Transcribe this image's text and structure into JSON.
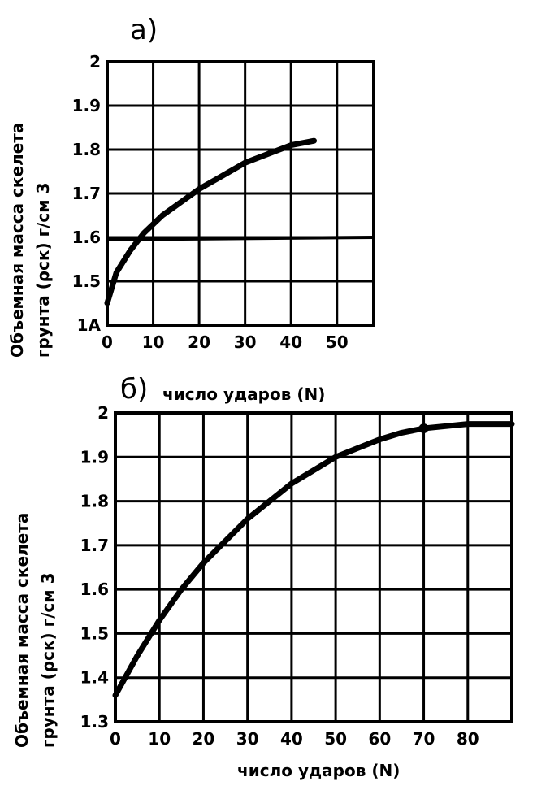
{
  "chart_data": [
    {
      "type": "line",
      "panel_label": "а)",
      "xlabel": "",
      "ylabel_line1": "Объемная масса скелета",
      "ylabel_line2": "грунта (ρск) г/см 3",
      "x_ticks": [
        "0",
        "10",
        "20",
        "30",
        "40",
        "50"
      ],
      "y_ticks": [
        "1A",
        "1.5",
        "1.6",
        "1.7",
        "1.8",
        "1.9",
        "2"
      ],
      "xlim": [
        0,
        58
      ],
      "ylim": [
        1.4,
        2.0
      ],
      "grid": true,
      "series": [
        {
          "x": [
            0,
            2,
            5,
            8,
            12,
            16,
            20,
            25,
            30,
            35,
            40,
            45
          ],
          "y": [
            1.45,
            1.52,
            1.57,
            1.61,
            1.65,
            1.68,
            1.71,
            1.74,
            1.77,
            1.79,
            1.81,
            1.82
          ]
        }
      ],
      "extra_line": {
        "x": [
          0,
          58
        ],
        "y": [
          1.595,
          1.6
        ]
      }
    },
    {
      "type": "line",
      "panel_label": "б)",
      "xlabel": "число ударов (N)",
      "ylabel_line1": "Объемная масса скелета",
      "ylabel_line2": "грунта (ρск) г/см 3",
      "x_ticks": [
        "0",
        "10",
        "20",
        "30",
        "40",
        "50",
        "60",
        "70",
        "80"
      ],
      "y_ticks": [
        "1.3",
        "1.4",
        "1.5",
        "1.6",
        "1.7",
        "1.8",
        "1.9",
        "2"
      ],
      "xlim": [
        0,
        90
      ],
      "ylim": [
        1.3,
        2.0
      ],
      "grid": true,
      "series": [
        {
          "x": [
            0,
            5,
            10,
            15,
            20,
            25,
            30,
            35,
            40,
            45,
            50,
            55,
            60,
            65,
            70,
            75,
            80,
            85,
            90
          ],
          "y": [
            1.36,
            1.45,
            1.53,
            1.6,
            1.66,
            1.71,
            1.76,
            1.8,
            1.84,
            1.87,
            1.9,
            1.92,
            1.94,
            1.955,
            1.965,
            1.97,
            1.975,
            1.975,
            1.975
          ]
        }
      ],
      "markers": {
        "x": [
          70
        ],
        "y": [
          1.965
        ]
      }
    }
  ],
  "top_xlabel": "число ударов (N)"
}
